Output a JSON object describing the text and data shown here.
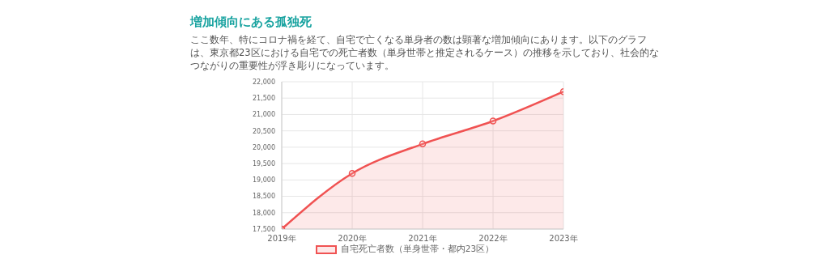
{
  "chart_data": {
    "type": "area",
    "title": "増加傾向にある孤独死",
    "subtitle": "ここ数年、特にコロナ禍を経て、自宅で亡くなる単身者の数は顕著な増加傾向にあります。以下のグラフは、東京都23区における自宅での死亡者数（単身世帯と推定されるケース）の推移を示しており、社会的なつながりの重要性が浮き彫りになっています。",
    "categories": [
      "2019年",
      "2020年",
      "2021年",
      "2022年",
      "2023年"
    ],
    "series": [
      {
        "name": "自宅死亡者数（単身世帯・都内23区）",
        "color": "#f05252",
        "values": [
          17500,
          19200,
          20100,
          20800,
          21700
        ]
      }
    ],
    "ylim": [
      17500,
      22000
    ],
    "yticks": [
      {
        "value": 17500,
        "label": "17,500"
      },
      {
        "value": 18000,
        "label": "18,000"
      },
      {
        "value": 18500,
        "label": "18,500"
      },
      {
        "value": 19000,
        "label": "19,000"
      },
      {
        "value": 19500,
        "label": "19,500"
      },
      {
        "value": 20000,
        "label": "20,000"
      },
      {
        "value": 20500,
        "label": "20,500"
      },
      {
        "value": 21000,
        "label": "21,000"
      },
      {
        "value": 21500,
        "label": "21,500"
      },
      {
        "value": 22000,
        "label": "22,000"
      }
    ],
    "grid": true,
    "legend": "bottom",
    "marker": "circle",
    "line_style": "solid"
  }
}
